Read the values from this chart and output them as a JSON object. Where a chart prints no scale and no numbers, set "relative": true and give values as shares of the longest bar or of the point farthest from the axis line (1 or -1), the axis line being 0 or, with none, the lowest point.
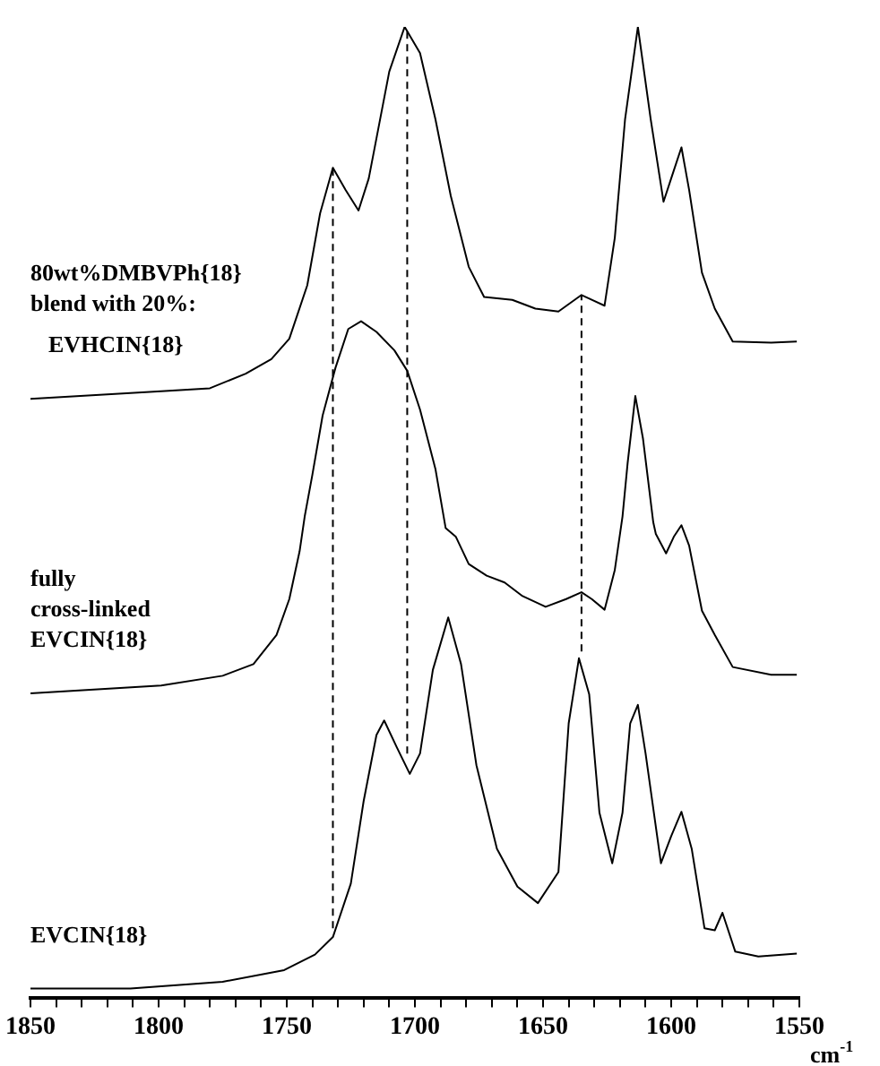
{
  "chart_data": {
    "type": "line",
    "relative": true,
    "xlabel": "cm$^{-1}$",
    "xlim": [
      1850,
      1550
    ],
    "xticks": [
      1850,
      {
        "value": 1840,
        "label": null
      },
      {
        "value": 1830,
        "label": null
      },
      {
        "value": 1820,
        "label": null
      },
      {
        "value": 1810,
        "label": null
      },
      1800,
      {
        "value": 1790,
        "label": null
      },
      {
        "value": 1780,
        "label": null
      },
      {
        "value": 1770,
        "label": null
      },
      {
        "value": 1760,
        "label": null
      },
      1750,
      {
        "value": 1740,
        "label": null
      },
      {
        "value": 1730,
        "label": null
      },
      {
        "value": 1720,
        "label": null
      },
      {
        "value": 1710,
        "label": null
      },
      1700,
      {
        "value": 1690,
        "label": null
      },
      {
        "value": 1680,
        "label": null
      },
      {
        "value": 1670,
        "label": null
      },
      {
        "value": 1660,
        "label": null
      },
      1650,
      {
        "value": 1640,
        "label": null
      },
      {
        "value": 1630,
        "label": null
      },
      {
        "value": 1620,
        "label": null
      },
      {
        "value": 1610,
        "label": null
      },
      1600,
      {
        "value": 1590,
        "label": null
      },
      {
        "value": 1580,
        "label": null
      },
      {
        "value": 1570,
        "label": null
      },
      {
        "value": 1560,
        "label": null
      },
      1550
    ],
    "grid": false,
    "legend": false,
    "marker": "none",
    "line_style": "solid",
    "annotations": [
      "80wt%DMBVPh{18} blend with 20%:"
    ],
    "series": [
      {
        "name": "EVHCIN{18}",
        "color": "#000000",
        "x": [
          1850,
          1799,
          1780,
          1766,
          1756,
          1749,
          1742,
          1737,
          1732,
          1727,
          1722,
          1718,
          1710,
          1704,
          1698,
          1692,
          1686,
          1679,
          1673,
          1662,
          1653,
          1644,
          1635,
          1631,
          1626,
          1622,
          1618,
          1613,
          1608,
          1603,
          1600,
          1596,
          1593,
          1588,
          1583,
          1576,
          1561,
          1551
        ],
        "values": [
          0.617,
          0.625,
          0.628,
          0.643,
          0.658,
          0.679,
          0.734,
          0.808,
          0.855,
          0.832,
          0.811,
          0.844,
          0.954,
          1.0,
          0.973,
          0.905,
          0.826,
          0.753,
          0.722,
          0.719,
          0.71,
          0.707,
          0.724,
          0.719,
          0.713,
          0.783,
          0.905,
          1.0,
          0.905,
          0.82,
          0.844,
          0.876,
          0.832,
          0.747,
          0.71,
          0.676,
          0.675,
          0.676
        ]
      },
      {
        "name": "fully cross-linked EVCIN{18}",
        "color": "#000000",
        "x": [
          1850,
          1799,
          1775,
          1763,
          1754,
          1749,
          1745,
          1743,
          1740,
          1736,
          1731,
          1726,
          1721,
          1715,
          1708,
          1703,
          1698,
          1692,
          1688,
          1684,
          1679,
          1672,
          1665,
          1658,
          1649,
          1641,
          1635,
          1631,
          1626,
          1622,
          1619,
          1617,
          1614,
          1611,
          1607,
          1606,
          1602,
          1599,
          1596,
          1593,
          1588,
          1583,
          1576,
          1561,
          1551
        ],
        "values": [
          0.314,
          0.322,
          0.332,
          0.344,
          0.374,
          0.411,
          0.46,
          0.496,
          0.539,
          0.6,
          0.649,
          0.689,
          0.697,
          0.686,
          0.667,
          0.646,
          0.606,
          0.545,
          0.484,
          0.475,
          0.447,
          0.435,
          0.428,
          0.414,
          0.403,
          0.411,
          0.418,
          0.411,
          0.4,
          0.441,
          0.496,
          0.551,
          0.62,
          0.576,
          0.49,
          0.478,
          0.458,
          0.475,
          0.487,
          0.466,
          0.399,
          0.374,
          0.341,
          0.333,
          0.333
        ]
      },
      {
        "name": "EVCIN{18}",
        "color": "#000000",
        "x": [
          1850,
          1811,
          1775,
          1751,
          1739,
          1732,
          1725,
          1720,
          1715,
          1712,
          1707,
          1702,
          1698,
          1693,
          1687,
          1682,
          1676,
          1668,
          1660,
          1652,
          1644,
          1640,
          1636,
          1632,
          1628,
          1623,
          1619,
          1616,
          1613,
          1610,
          1604,
          1600,
          1596,
          1592,
          1587,
          1583,
          1580,
          1575,
          1566,
          1551
        ],
        "values": [
          0.01,
          0.01,
          0.017,
          0.029,
          0.045,
          0.063,
          0.118,
          0.203,
          0.271,
          0.286,
          0.258,
          0.231,
          0.252,
          0.338,
          0.392,
          0.344,
          0.24,
          0.154,
          0.115,
          0.098,
          0.13,
          0.283,
          0.35,
          0.313,
          0.191,
          0.139,
          0.191,
          0.283,
          0.302,
          0.252,
          0.139,
          0.167,
          0.192,
          0.154,
          0.072,
          0.07,
          0.088,
          0.048,
          0.043,
          0.046
        ]
      },
      {
        "type": "line",
        "color": "#000000",
        "line_style": "dashed",
        "x": [
          1732,
          1732
        ],
        "values": [
          0.072,
          0.855
        ]
      },
      {
        "type": "line",
        "color": "#000000",
        "line_style": "dashed",
        "x": [
          1703,
          1703
        ],
        "values": [
          0.252,
          1.0
        ]
      },
      {
        "type": "line",
        "color": "#000000",
        "line_style": "dashed",
        "x": [
          1635,
          1635
        ],
        "values": [
          0.357,
          0.724
        ]
      }
    ]
  }
}
